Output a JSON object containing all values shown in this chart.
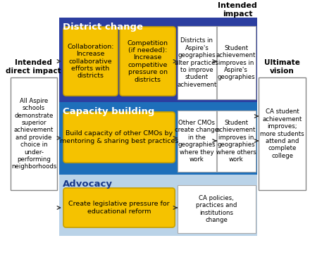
{
  "bg_color": "#ffffff",
  "intended_impact_label": "Intended\nimpact",
  "intended_direct_label": "Intended\ndirect impact",
  "ultimate_vision_label": "Ultimate\nvision",
  "left_box_text": "All Aspire\nschools\ndemonstrate\nsuperior\nachievement\nand provide\nchoice in\nunder-\nperforming\nneighborhoods",
  "right_box_text": "CA student\nachievement\nimproves;\nmore students\nattend and\ncomplete\ncollege",
  "district_change_color": "#2c3ea0",
  "capacity_building_color": "#1e6fba",
  "advocacy_color": "#bad3e8",
  "district_label": "District change",
  "capacity_label": "Capacity building",
  "advocacy_label": "Advocacy",
  "collab_text": "Collaboration:\nIncrease\ncollaborative\nefforts with\ndistricts",
  "comp_text": "Competition\n(if needed):\nIncrease\ncompetitive\npressure on\ndistricts",
  "build_cap_text": "Build capacity of other CMOs by\nmentoring & sharing best practices",
  "advocacy_text": "Create legislative pressure for\neducational reform",
  "districts_alter_text": "Districts in\nAspire's\ngeographies\nalter practices\nto improve\nstudent\nachievement",
  "student_aspire_text": "Student\nachievement\nimproves in\nAspire's\ngeographies",
  "other_cmos_text": "Other CMOs\ncreate change\nin the\ngeographies\nwhere they\nwork",
  "student_others_text": "Student\nachievement\nimproves in\ngeographies\nwhere others\nwork",
  "ca_policies_text": "CA policies,\npractices and\ninstitutions\nchange",
  "yellow_color": "#f5c200",
  "yellow_ec": "#c8a000"
}
